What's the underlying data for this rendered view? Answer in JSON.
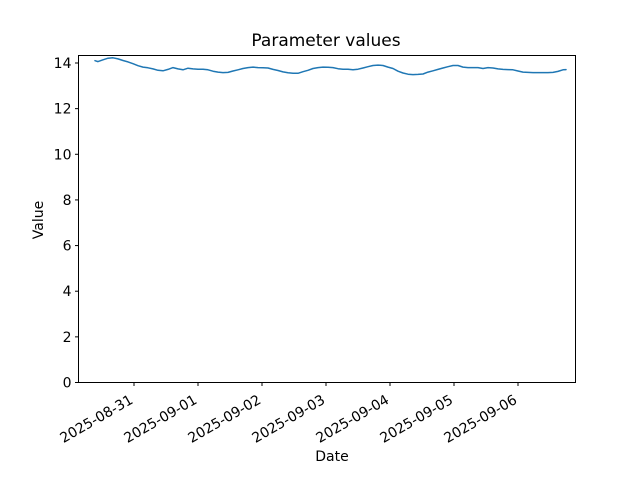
{
  "figure": {
    "background": "#ffffff",
    "text_color": "#000000",
    "spine_color": "#000000"
  },
  "chart_data": {
    "type": "line",
    "title": "Parameter values",
    "xlabel": "Date",
    "ylabel": "Value",
    "grid": false,
    "legend": false,
    "x_axis": {
      "tick_labels": [
        "2025-08-31",
        "2025-09-01",
        "2025-09-02",
        "2025-09-03",
        "2025-09-04",
        "2025-09-05",
        "2025-09-06"
      ],
      "tick_positions_days": [
        0,
        1,
        2,
        3,
        4,
        5,
        6
      ],
      "unit": "days since 2025-08-31",
      "lim_days": [
        -0.87,
        6.9
      ],
      "label_rotation_deg": 30
    },
    "y_axis": {
      "ticks": [
        0,
        2,
        4,
        6,
        8,
        10,
        12,
        14
      ],
      "lim": [
        0,
        14.33
      ]
    },
    "series": [
      {
        "color": "#1f77b4",
        "line_width": 1.5,
        "points": [
          [
            -0.609,
            14.1
          ],
          [
            -0.563,
            14.06
          ],
          [
            -0.484,
            14.14
          ],
          [
            -0.406,
            14.21
          ],
          [
            -0.328,
            14.23
          ],
          [
            -0.25,
            14.18
          ],
          [
            -0.172,
            14.11
          ],
          [
            -0.094,
            14.05
          ],
          [
            -0.016,
            13.97
          ],
          [
            0.063,
            13.88
          ],
          [
            0.141,
            13.82
          ],
          [
            0.219,
            13.79
          ],
          [
            0.297,
            13.74
          ],
          [
            0.375,
            13.68
          ],
          [
            0.453,
            13.66
          ],
          [
            0.531,
            13.72
          ],
          [
            0.609,
            13.8
          ],
          [
            0.688,
            13.74
          ],
          [
            0.766,
            13.7
          ],
          [
            0.844,
            13.77
          ],
          [
            0.922,
            13.74
          ],
          [
            1.0,
            13.73
          ],
          [
            1.078,
            13.73
          ],
          [
            1.156,
            13.7
          ],
          [
            1.234,
            13.64
          ],
          [
            1.313,
            13.6
          ],
          [
            1.391,
            13.58
          ],
          [
            1.469,
            13.59
          ],
          [
            1.547,
            13.65
          ],
          [
            1.625,
            13.7
          ],
          [
            1.703,
            13.76
          ],
          [
            1.781,
            13.8
          ],
          [
            1.859,
            13.82
          ],
          [
            1.938,
            13.8
          ],
          [
            2.016,
            13.79
          ],
          [
            2.094,
            13.78
          ],
          [
            2.172,
            13.72
          ],
          [
            2.25,
            13.67
          ],
          [
            2.328,
            13.61
          ],
          [
            2.406,
            13.57
          ],
          [
            2.484,
            13.55
          ],
          [
            2.563,
            13.55
          ],
          [
            2.641,
            13.62
          ],
          [
            2.719,
            13.68
          ],
          [
            2.797,
            13.76
          ],
          [
            2.875,
            13.8
          ],
          [
            2.953,
            13.82
          ],
          [
            3.031,
            13.81
          ],
          [
            3.109,
            13.8
          ],
          [
            3.188,
            13.75
          ],
          [
            3.266,
            13.73
          ],
          [
            3.344,
            13.73
          ],
          [
            3.422,
            13.7
          ],
          [
            3.5,
            13.73
          ],
          [
            3.578,
            13.78
          ],
          [
            3.656,
            13.84
          ],
          [
            3.734,
            13.89
          ],
          [
            3.813,
            13.91
          ],
          [
            3.891,
            13.89
          ],
          [
            3.969,
            13.82
          ],
          [
            4.047,
            13.76
          ],
          [
            4.125,
            13.64
          ],
          [
            4.203,
            13.56
          ],
          [
            4.281,
            13.51
          ],
          [
            4.359,
            13.49
          ],
          [
            4.438,
            13.5
          ],
          [
            4.516,
            13.52
          ],
          [
            4.594,
            13.6
          ],
          [
            4.672,
            13.66
          ],
          [
            4.75,
            13.72
          ],
          [
            4.828,
            13.78
          ],
          [
            4.906,
            13.84
          ],
          [
            4.984,
            13.89
          ],
          [
            5.063,
            13.89
          ],
          [
            5.141,
            13.82
          ],
          [
            5.219,
            13.8
          ],
          [
            5.297,
            13.8
          ],
          [
            5.375,
            13.8
          ],
          [
            5.453,
            13.76
          ],
          [
            5.531,
            13.8
          ],
          [
            5.609,
            13.78
          ],
          [
            5.688,
            13.74
          ],
          [
            5.766,
            13.72
          ],
          [
            5.844,
            13.71
          ],
          [
            5.922,
            13.7
          ],
          [
            6.0,
            13.65
          ],
          [
            6.078,
            13.6
          ],
          [
            6.156,
            13.59
          ],
          [
            6.234,
            13.58
          ],
          [
            6.313,
            13.58
          ],
          [
            6.391,
            13.58
          ],
          [
            6.469,
            13.58
          ],
          [
            6.547,
            13.59
          ],
          [
            6.625,
            13.63
          ],
          [
            6.703,
            13.7
          ],
          [
            6.75,
            13.71
          ]
        ]
      }
    ]
  }
}
